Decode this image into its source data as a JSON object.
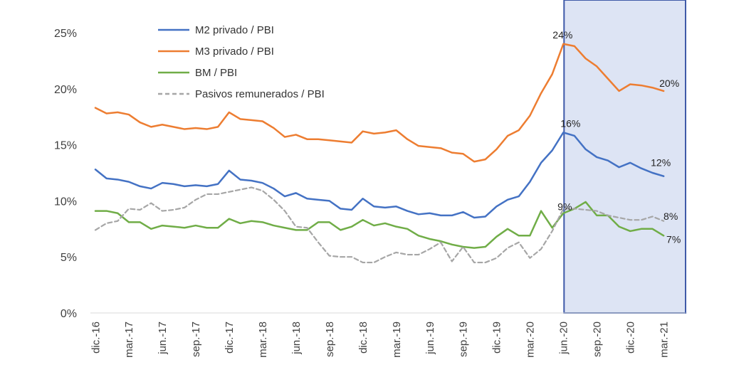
{
  "chart_data": {
    "type": "line",
    "ylim": [
      0,
      0.25
    ],
    "y_ticks": [
      "0%",
      "5%",
      "10%",
      "15%",
      "20%",
      "25%"
    ],
    "x_tick_labels": [
      "dic.-16",
      "mar.-17",
      "jun.-17",
      "sep.-17",
      "dic.-17",
      "mar.-18",
      "jun.-18",
      "sep.-18",
      "dic.-18",
      "mar.-19",
      "jun.-19",
      "sep.-19",
      "dic.-19",
      "mar.-20",
      "jun.-20",
      "sep.-20",
      "dic.-20",
      "mar.-21"
    ],
    "grid": false,
    "legend_position": "top-left",
    "highlight": {
      "from": "jun.-20",
      "to": "jun.-21",
      "color": "#dde4f4",
      "border": "#3f5aa8"
    },
    "series": [
      {
        "name": "M2 privado / PBI",
        "color": "#4472c4",
        "dash": false,
        "values": [
          0.128,
          0.12,
          0.119,
          0.117,
          0.113,
          0.111,
          0.116,
          0.115,
          0.113,
          0.114,
          0.113,
          0.115,
          0.127,
          0.119,
          0.118,
          0.116,
          0.111,
          0.104,
          0.107,
          0.102,
          0.101,
          0.1,
          0.093,
          0.092,
          0.102,
          0.095,
          0.094,
          0.095,
          0.091,
          0.088,
          0.089,
          0.087,
          0.087,
          0.09,
          0.085,
          0.086,
          0.095,
          0.101,
          0.104,
          0.117,
          0.134,
          0.145,
          0.161,
          0.158,
          0.146,
          0.139,
          0.136,
          0.13,
          0.134,
          0.129,
          0.125,
          0.122
        ]
      },
      {
        "name": "M3 privado / PBI",
        "color": "#ed7d31",
        "dash": false,
        "values": [
          0.183,
          0.178,
          0.179,
          0.177,
          0.17,
          0.166,
          0.168,
          0.166,
          0.164,
          0.165,
          0.164,
          0.166,
          0.179,
          0.173,
          0.172,
          0.171,
          0.165,
          0.157,
          0.159,
          0.155,
          0.155,
          0.154,
          0.153,
          0.152,
          0.162,
          0.16,
          0.161,
          0.163,
          0.155,
          0.149,
          0.148,
          0.147,
          0.143,
          0.142,
          0.135,
          0.137,
          0.146,
          0.158,
          0.163,
          0.176,
          0.196,
          0.213,
          0.24,
          0.238,
          0.227,
          0.22,
          0.209,
          0.198,
          0.204,
          0.203,
          0.201,
          0.198
        ]
      },
      {
        "name": "BM / PBI",
        "color": "#70ad47",
        "dash": false,
        "values": [
          0.091,
          0.091,
          0.089,
          0.081,
          0.081,
          0.075,
          0.078,
          0.077,
          0.076,
          0.078,
          0.076,
          0.076,
          0.084,
          0.08,
          0.082,
          0.081,
          0.078,
          0.076,
          0.074,
          0.074,
          0.081,
          0.081,
          0.074,
          0.077,
          0.083,
          0.078,
          0.08,
          0.077,
          0.075,
          0.069,
          0.066,
          0.064,
          0.061,
          0.059,
          0.058,
          0.059,
          0.068,
          0.075,
          0.069,
          0.069,
          0.091,
          0.076,
          0.089,
          0.093,
          0.099,
          0.087,
          0.087,
          0.077,
          0.073,
          0.075,
          0.075,
          0.069
        ]
      },
      {
        "name": "Pasivos remunerados / PBI",
        "color": "#a6a6a6",
        "dash": true,
        "values": [
          0.074,
          0.08,
          0.082,
          0.093,
          0.092,
          0.098,
          0.091,
          0.092,
          0.094,
          0.101,
          0.106,
          0.106,
          0.108,
          0.11,
          0.112,
          0.109,
          0.101,
          0.091,
          0.077,
          0.076,
          0.063,
          0.051,
          0.05,
          0.05,
          0.045,
          0.045,
          0.05,
          0.054,
          0.052,
          0.052,
          0.057,
          0.063,
          0.046,
          0.059,
          0.045,
          0.045,
          0.049,
          0.058,
          0.063,
          0.049,
          0.057,
          0.073,
          0.093,
          0.093,
          0.092,
          0.091,
          0.087,
          0.085,
          0.083,
          0.083,
          0.086,
          0.082
        ]
      }
    ],
    "annotations": [
      {
        "text": "24%",
        "series": "M3 privado / PBI",
        "index": 42
      },
      {
        "text": "20%",
        "series": "M3 privado / PBI",
        "index": 51
      },
      {
        "text": "16%",
        "series": "M2 privado / PBI",
        "index": 42
      },
      {
        "text": "12%",
        "series": "M2 privado / PBI",
        "index": 51
      },
      {
        "text": "9%",
        "series": "BM / PBI",
        "index": 42
      },
      {
        "text": "8%",
        "series": "Pasivos remunerados / PBI",
        "index": 51
      },
      {
        "text": "7%",
        "series": "BM / PBI",
        "index": 51
      }
    ]
  }
}
